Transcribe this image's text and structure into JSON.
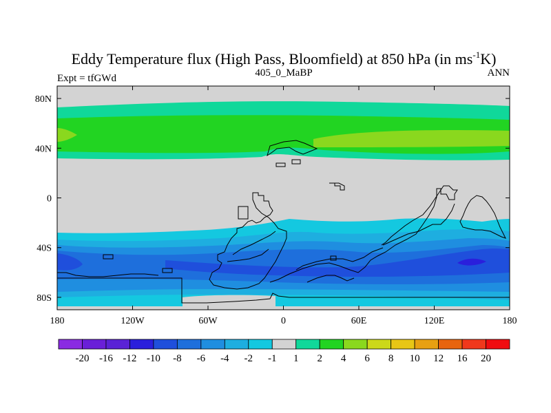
{
  "chart_data": {
    "type": "filled_contour_map",
    "title": {
      "main": "Eddy Temperature flux (High Pass, Bloomfield) at 850 hPa (in ms",
      "superscript": "-1",
      "suffix": "K)"
    },
    "left_subtitle": "Expt = tfGWd",
    "center_subtitle": "405_0_MaBP",
    "right_subtitle": "ANN",
    "xlim": [
      -180,
      180
    ],
    "ylim": [
      -90,
      90
    ],
    "x_ticks": [
      {
        "value": -180,
        "label": "180"
      },
      {
        "value": -120,
        "label": "120W"
      },
      {
        "value": -60,
        "label": "60W"
      },
      {
        "value": 0,
        "label": "0"
      },
      {
        "value": 60,
        "label": "60E"
      },
      {
        "value": 120,
        "label": "120E"
      },
      {
        "value": 180,
        "label": "180"
      }
    ],
    "y_ticks": [
      {
        "value": 80,
        "label": "80N"
      },
      {
        "value": 40,
        "label": "40N"
      },
      {
        "value": 0,
        "label": "0"
      },
      {
        "value": -40,
        "label": "40S"
      },
      {
        "value": -80,
        "label": "80S"
      }
    ],
    "colorbar": {
      "levels": [
        "-20",
        "-16",
        "-12",
        "-10",
        "-8",
        "-6",
        "-4",
        "-2",
        "-1",
        "1",
        "2",
        "4",
        "6",
        "8",
        "10",
        "12",
        "16",
        "20"
      ],
      "colors": [
        "#8a2be2",
        "#6a1fd8",
        "#5a22d6",
        "#2a1fdc",
        "#1f4fdc",
        "#1e6fdc",
        "#1f8ee0",
        "#1eaee0",
        "#14c8e0",
        "#d3d3d3",
        "#10d89a",
        "#22d422",
        "#8ad81e",
        "#ccd81a",
        "#e8c616",
        "#e8a012",
        "#e8640e",
        "#f0381c",
        "#f00c10"
      ]
    },
    "fields": [
      {
        "name": "Northern midlatitude band",
        "lat_range": [
          33,
          70
        ],
        "level": "1 to 4"
      },
      {
        "name": "Northern core maxima",
        "lat_range": [
          38,
          55
        ],
        "level": "4 to 6"
      },
      {
        "name": "Southern midlatitude band",
        "lat_range": [
          -87,
          -28
        ],
        "level": "-1 to -6"
      },
      {
        "name": "Southern core minima",
        "lat_range": [
          -60,
          -40
        ],
        "level": "-6 to -10"
      },
      {
        "name": "Near-zero background",
        "lat_range": [
          -28,
          33
        ],
        "level": "-1 to 1"
      }
    ]
  }
}
